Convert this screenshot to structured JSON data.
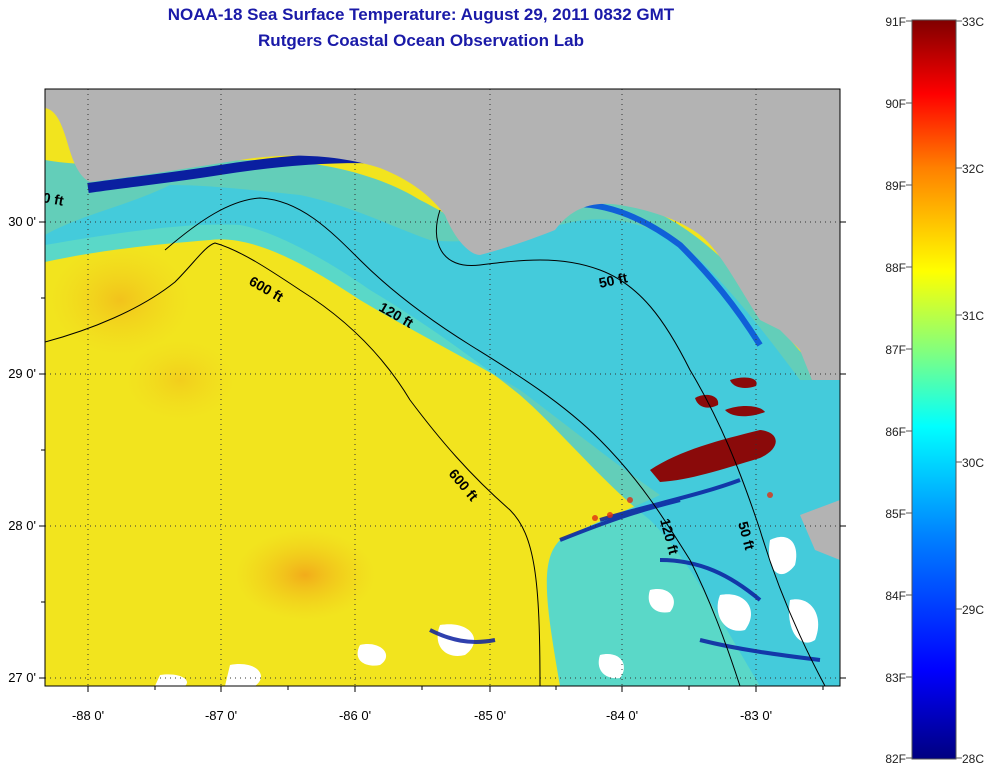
{
  "title_line1": "NOAA-18 Sea Surface Temperature:  August 29, 2011 0832 GMT",
  "title_line2": "Rutgers Coastal Ocean Observation Lab",
  "longitude_ticks": [
    "-88 0'",
    "-87 0'",
    "-86 0'",
    "-85 0'",
    "-84 0'",
    "-83 0'"
  ],
  "latitude_ticks": [
    "30 0'",
    "29 0'",
    "28 0'",
    "27 0'"
  ],
  "depth_contour_labels": [
    "600 ft",
    "120 ft",
    "50 ft",
    "600 ft",
    "120 ft",
    "50 ft",
    "0 ft"
  ],
  "colorbar": {
    "fahrenheit_labels": [
      "91F",
      "90F",
      "89F",
      "88F",
      "87F",
      "86F",
      "85F",
      "84F",
      "83F",
      "82F"
    ],
    "celsius_labels": [
      "33C",
      "32C",
      "31C",
      "30C",
      "29C",
      "28C"
    ]
  },
  "colors": {
    "land": "#b3b3b3",
    "title": "#1a1aa8",
    "offshore_water": "#f2e41e",
    "shelf_water": "#3fd6d9",
    "coastal_cold": "#0a1fa0",
    "warm_patch": "#8a0a0a",
    "cloud": "#ffffff"
  }
}
